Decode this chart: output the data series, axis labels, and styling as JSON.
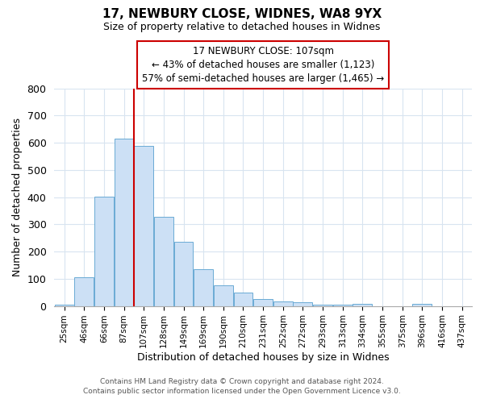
{
  "title": "17, NEWBURY CLOSE, WIDNES, WA8 9YX",
  "subtitle": "Size of property relative to detached houses in Widnes",
  "xlabel": "Distribution of detached houses by size in Widnes",
  "ylabel": "Number of detached properties",
  "bin_labels": [
    "25sqm",
    "46sqm",
    "66sqm",
    "87sqm",
    "107sqm",
    "128sqm",
    "149sqm",
    "169sqm",
    "190sqm",
    "210sqm",
    "231sqm",
    "252sqm",
    "272sqm",
    "293sqm",
    "313sqm",
    "334sqm",
    "355sqm",
    "375sqm",
    "396sqm",
    "416sqm",
    "437sqm"
  ],
  "bar_values": [
    5,
    105,
    403,
    615,
    590,
    328,
    237,
    135,
    76,
    50,
    25,
    17,
    15,
    5,
    5,
    8,
    0,
    0,
    8,
    0,
    0
  ],
  "bar_color": "#cce0f5",
  "bar_edge_color": "#6aaad4",
  "vline_x_index": 4,
  "vline_color": "#cc0000",
  "annotation_title": "17 NEWBURY CLOSE: 107sqm",
  "annotation_line1": "← 43% of detached houses are smaller (1,123)",
  "annotation_line2": "57% of semi-detached houses are larger (1,465) →",
  "annotation_box_color": "#cc0000",
  "ylim": [
    0,
    800
  ],
  "yticks": [
    0,
    100,
    200,
    300,
    400,
    500,
    600,
    700,
    800
  ],
  "footer_line1": "Contains HM Land Registry data © Crown copyright and database right 2024.",
  "footer_line2": "Contains public sector information licensed under the Open Government Licence v3.0.",
  "plot_bg_color": "#ffffff",
  "fig_bg_color": "#ffffff",
  "grid_color": "#d8e4f0"
}
